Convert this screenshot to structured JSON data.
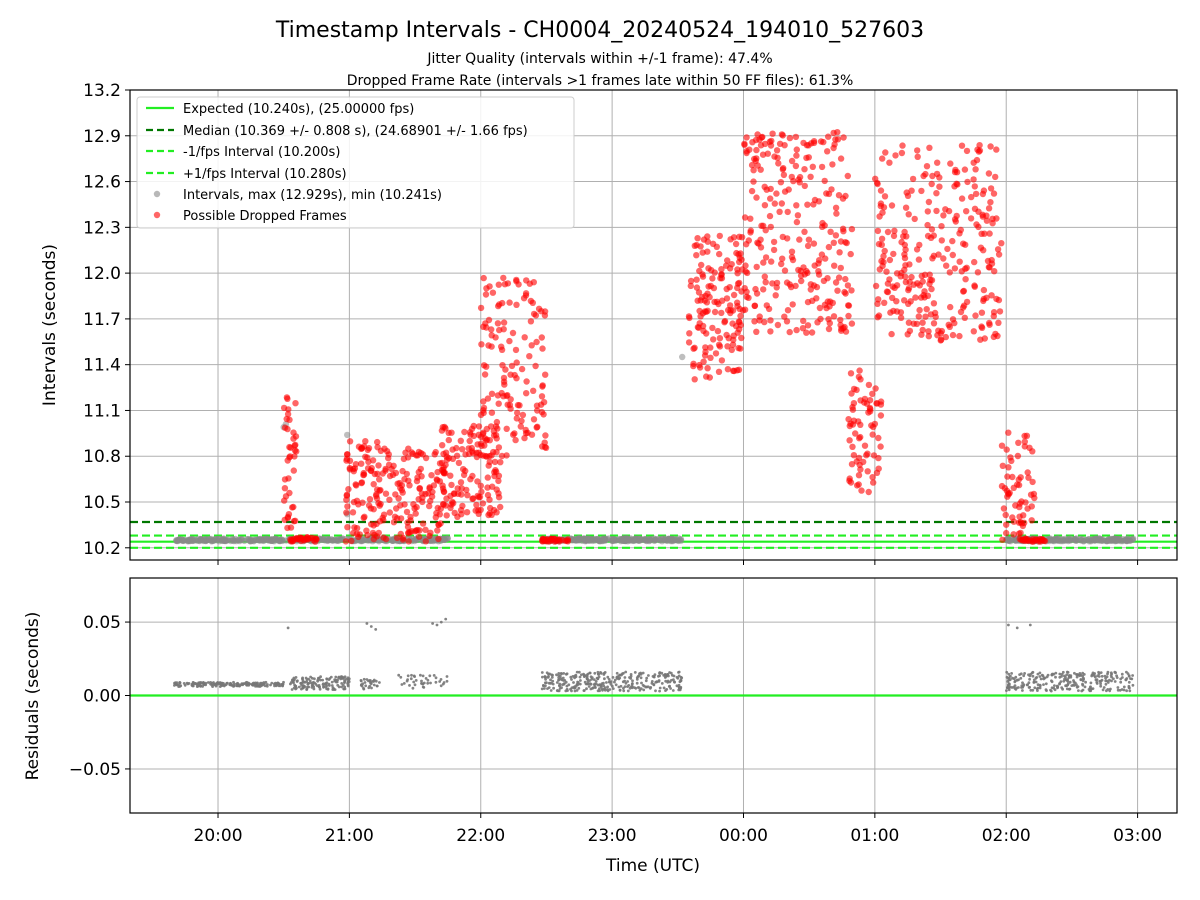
{
  "chart_data": [
    {
      "type": "scatter",
      "title": "Timestamp Intervals - CH0004_20240524_194010_527603",
      "subtitle_lines": [
        "Jitter Quality (intervals within +/-1 frame): 47.4%",
        "Dropped Frame Rate (intervals >1 frames late within 50 FF files): 61.3%"
      ],
      "ylabel": "Intervals (seconds)",
      "ylim": [
        10.12,
        13.2
      ],
      "yticks": [
        "10.2",
        "10.5",
        "10.8",
        "11.1",
        "11.4",
        "11.7",
        "12.0",
        "12.3",
        "12.6",
        "12.9",
        "13.2"
      ],
      "xlim_hours": [
        -4.67,
        3.3
      ],
      "grid": true,
      "legend_position": "top-left",
      "reference_lines": [
        {
          "name": "Expected (10.240s), (25.00000 fps)",
          "y": 10.24,
          "color": "#22ee22",
          "style": "solid"
        },
        {
          "name": "Median (10.369 +/- 0.808 s), (24.68901 +/- 1.66 fps)",
          "y": 10.369,
          "color": "#007700",
          "style": "dashed"
        },
        {
          "name": "-1/fps Interval (10.200s)",
          "y": 10.2,
          "color": "#22ee22",
          "style": "dashed"
        },
        {
          "name": "+1/fps Interval (10.280s)",
          "y": 10.28,
          "color": "#22ee22",
          "style": "dashed"
        }
      ],
      "series": [
        {
          "name": "Intervals, max (12.929s), min (10.241s)",
          "color": "#888888",
          "segments": [
            {
              "start_time": "19:40",
              "end_time": "20:33",
              "min": 10.243,
              "max": 10.26,
              "points": 160
            },
            {
              "start_time": "20:33",
              "end_time": "21:45",
              "min": 10.243,
              "max": 10.262,
              "points": 200
            },
            {
              "start_time": "22:28",
              "end_time": "23:32",
              "min": 10.243,
              "max": 10.262,
              "points": 240
            },
            {
              "start_time": "02:00",
              "end_time": "02:58",
              "min": 10.243,
              "max": 10.262,
              "points": 200
            }
          ],
          "outliers": [
            {
              "time": "20:30",
              "value": 10.99
            },
            {
              "time": "20:31",
              "value": 11.01
            },
            {
              "time": "20:59",
              "value": 10.94
            },
            {
              "time": "20:59",
              "value": 10.42
            },
            {
              "time": "23:32",
              "value": 11.45
            }
          ]
        },
        {
          "name": "Possible Dropped Frames",
          "color": "#ff0000",
          "segments": [
            {
              "start_time": "20:30",
              "end_time": "20:36",
              "min": 10.3,
              "max": 11.2,
              "points": 40
            },
            {
              "start_time": "20:33",
              "end_time": "20:45",
              "min": 10.24,
              "max": 10.27,
              "points": 30
            },
            {
              "start_time": "20:58",
              "end_time": "21:15",
              "min": 10.24,
              "max": 10.9,
              "points": 90
            },
            {
              "start_time": "21:15",
              "end_time": "21:45",
              "min": 10.24,
              "max": 10.85,
              "points": 130
            },
            {
              "start_time": "21:42",
              "end_time": "22:10",
              "min": 10.4,
              "max": 11.0,
              "points": 130
            },
            {
              "start_time": "22:00",
              "end_time": "22:30",
              "min": 10.8,
              "max": 11.97,
              "points": 140
            },
            {
              "start_time": "22:28",
              "end_time": "22:40",
              "min": 10.24,
              "max": 10.26,
              "points": 30
            },
            {
              "start_time": "23:35",
              "end_time": "00:00",
              "min": 11.3,
              "max": 12.25,
              "points": 150
            },
            {
              "start_time": "00:00",
              "end_time": "00:50",
              "min": 11.6,
              "max": 12.93,
              "points": 260
            },
            {
              "start_time": "00:48",
              "end_time": "01:03",
              "min": 10.55,
              "max": 11.37,
              "points": 70
            },
            {
              "start_time": "01:00",
              "end_time": "01:58",
              "min": 11.55,
              "max": 12.85,
              "points": 280
            },
            {
              "start_time": "01:58",
              "end_time": "02:13",
              "min": 10.24,
              "max": 10.97,
              "points": 60
            },
            {
              "start_time": "02:05",
              "end_time": "02:18",
              "min": 10.24,
              "max": 10.26,
              "points": 25
            }
          ]
        }
      ]
    },
    {
      "type": "scatter",
      "xlabel": "Time (UTC)",
      "ylabel": "Residuals (seconds)",
      "ylim": [
        -0.08,
        0.08
      ],
      "yticks": [
        "0.05",
        "0.00",
        "−0.05"
      ],
      "xticks": [
        "20:00",
        "21:00",
        "22:00",
        "23:00",
        "00:00",
        "01:00",
        "02:00",
        "03:00"
      ],
      "grid": true,
      "reference_lines": [
        {
          "name": "zero",
          "y": 0.0,
          "color": "#22ee22",
          "style": "solid"
        }
      ],
      "series": [
        {
          "name": "Residuals",
          "color": "#777777",
          "segments": [
            {
              "start_time": "19:40",
              "end_time": "20:30",
              "min": 0.006,
              "max": 0.009,
              "points": 180
            },
            {
              "start_time": "20:33",
              "end_time": "21:00",
              "min": 0.004,
              "max": 0.013,
              "points": 140
            },
            {
              "start_time": "21:05",
              "end_time": "21:15",
              "min": 0.004,
              "max": 0.011,
              "points": 30
            },
            {
              "start_time": "21:22",
              "end_time": "21:45",
              "min": 0.004,
              "max": 0.014,
              "points": 40
            },
            {
              "start_time": "22:28",
              "end_time": "23:32",
              "min": 0.003,
              "max": 0.016,
              "points": 320
            },
            {
              "start_time": "02:00",
              "end_time": "02:58",
              "min": 0.003,
              "max": 0.016,
              "points": 260
            }
          ],
          "outliers": [
            {
              "time": "20:32",
              "value": 0.046
            },
            {
              "time": "21:08",
              "value": 0.049
            },
            {
              "time": "21:10",
              "value": 0.047
            },
            {
              "time": "21:12",
              "value": 0.045
            },
            {
              "time": "21:38",
              "value": 0.049
            },
            {
              "time": "21:40",
              "value": 0.048
            },
            {
              "time": "21:42",
              "value": 0.05
            },
            {
              "time": "21:44",
              "value": 0.052
            },
            {
              "time": "02:01",
              "value": 0.048
            },
            {
              "time": "02:05",
              "value": 0.046
            },
            {
              "time": "02:11",
              "value": 0.048
            }
          ]
        }
      ]
    }
  ]
}
